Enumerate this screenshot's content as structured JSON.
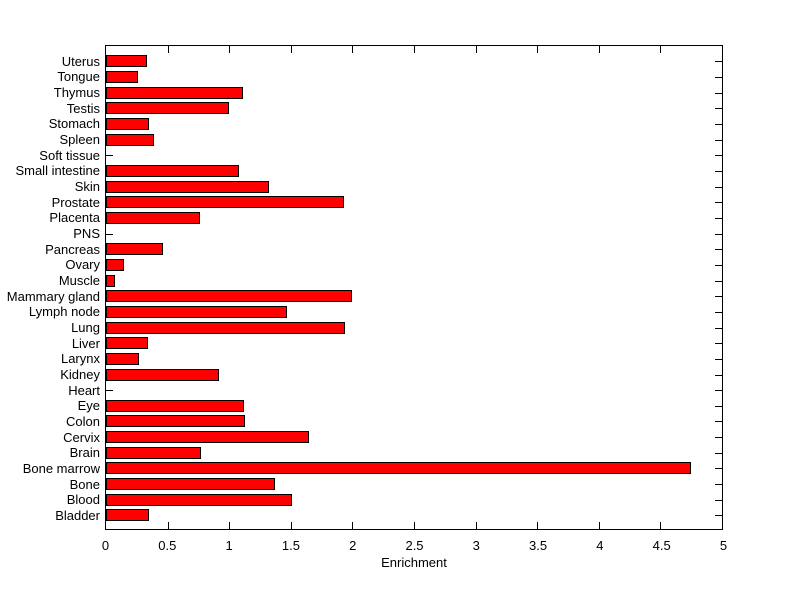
{
  "chart_data": {
    "type": "bar",
    "orientation": "horizontal",
    "title": "",
    "xlabel": "Enrichment",
    "ylabel": "",
    "xlim": [
      0,
      5
    ],
    "xticks": [
      0,
      0.5,
      1,
      1.5,
      2,
      2.5,
      3,
      3.5,
      4,
      4.5,
      5
    ],
    "xtick_labels": [
      "0",
      "0.5",
      "1",
      "1.5",
      "2",
      "2.5",
      "3",
      "3.5",
      "4",
      "4.5",
      "5"
    ],
    "grid": false,
    "legend": false,
    "bar_color": "#ff0000",
    "bar_edge_color": "#000000",
    "axis_color": "#000000",
    "background_color": "#ffffff",
    "categories": [
      "Uterus",
      "Tongue",
      "Thymus",
      "Testis",
      "Stomach",
      "Spleen",
      "Soft tissue",
      "Small intestine",
      "Skin",
      "Prostate",
      "Placenta",
      "PNS",
      "Pancreas",
      "Ovary",
      "Muscle",
      "Mammary gland",
      "Lymph node",
      "Lung",
      "Liver",
      "Larynx",
      "Kidney",
      "Heart",
      "Eye",
      "Colon",
      "Cervix",
      "Brain",
      "Bone marrow",
      "Bone",
      "Blood",
      "Bladder"
    ],
    "values": [
      0.33,
      0.26,
      1.11,
      1.0,
      0.35,
      0.39,
      0,
      1.08,
      1.32,
      1.93,
      0.76,
      0,
      0.46,
      0.15,
      0.07,
      2.0,
      1.47,
      1.94,
      0.34,
      0.27,
      0.92,
      0,
      1.12,
      1.13,
      1.65,
      0.77,
      4.75,
      1.37,
      1.51,
      0.35
    ]
  }
}
